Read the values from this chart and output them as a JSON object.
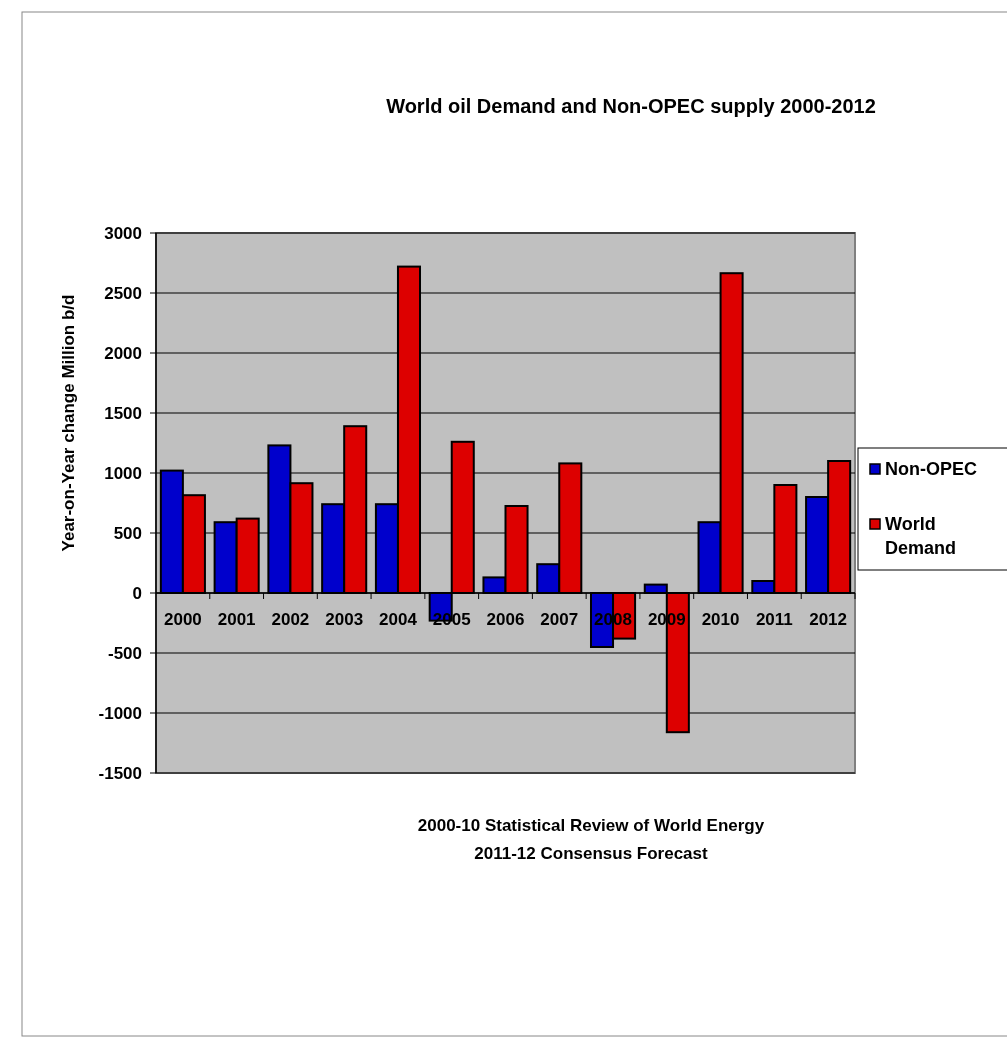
{
  "chart_data": {
    "type": "bar",
    "title": "World oil Demand and Non-OPEC supply 2000-2012",
    "ylabel": "Year-on-Year change Million b/d",
    "categories": [
      "2000",
      "2001",
      "2002",
      "2003",
      "2004",
      "2005",
      "2006",
      "2007",
      "2008",
      "2009",
      "2010",
      "2011",
      "2012"
    ],
    "series": [
      {
        "name": "Non-OPEC",
        "color": "#0000cc",
        "values": [
          1020,
          590,
          1230,
          740,
          740,
          -230,
          130,
          240,
          -450,
          70,
          590,
          100,
          800
        ]
      },
      {
        "name": "World Demand",
        "color": "#dd0000",
        "values": [
          815,
          620,
          915,
          1390,
          2720,
          1260,
          725,
          1080,
          -380,
          -1160,
          2665,
          900,
          1100
        ]
      }
    ],
    "ylim": [
      -1500,
      3000
    ],
    "yticks": [
      -1500,
      -1000,
      -500,
      0,
      500,
      1000,
      1500,
      2000,
      2500,
      3000
    ],
    "grid": "y",
    "legend": "right",
    "annotations": [
      "2000-10 Statistical Review of World Energy",
      "2011-12 Consensus Forecast"
    ]
  }
}
